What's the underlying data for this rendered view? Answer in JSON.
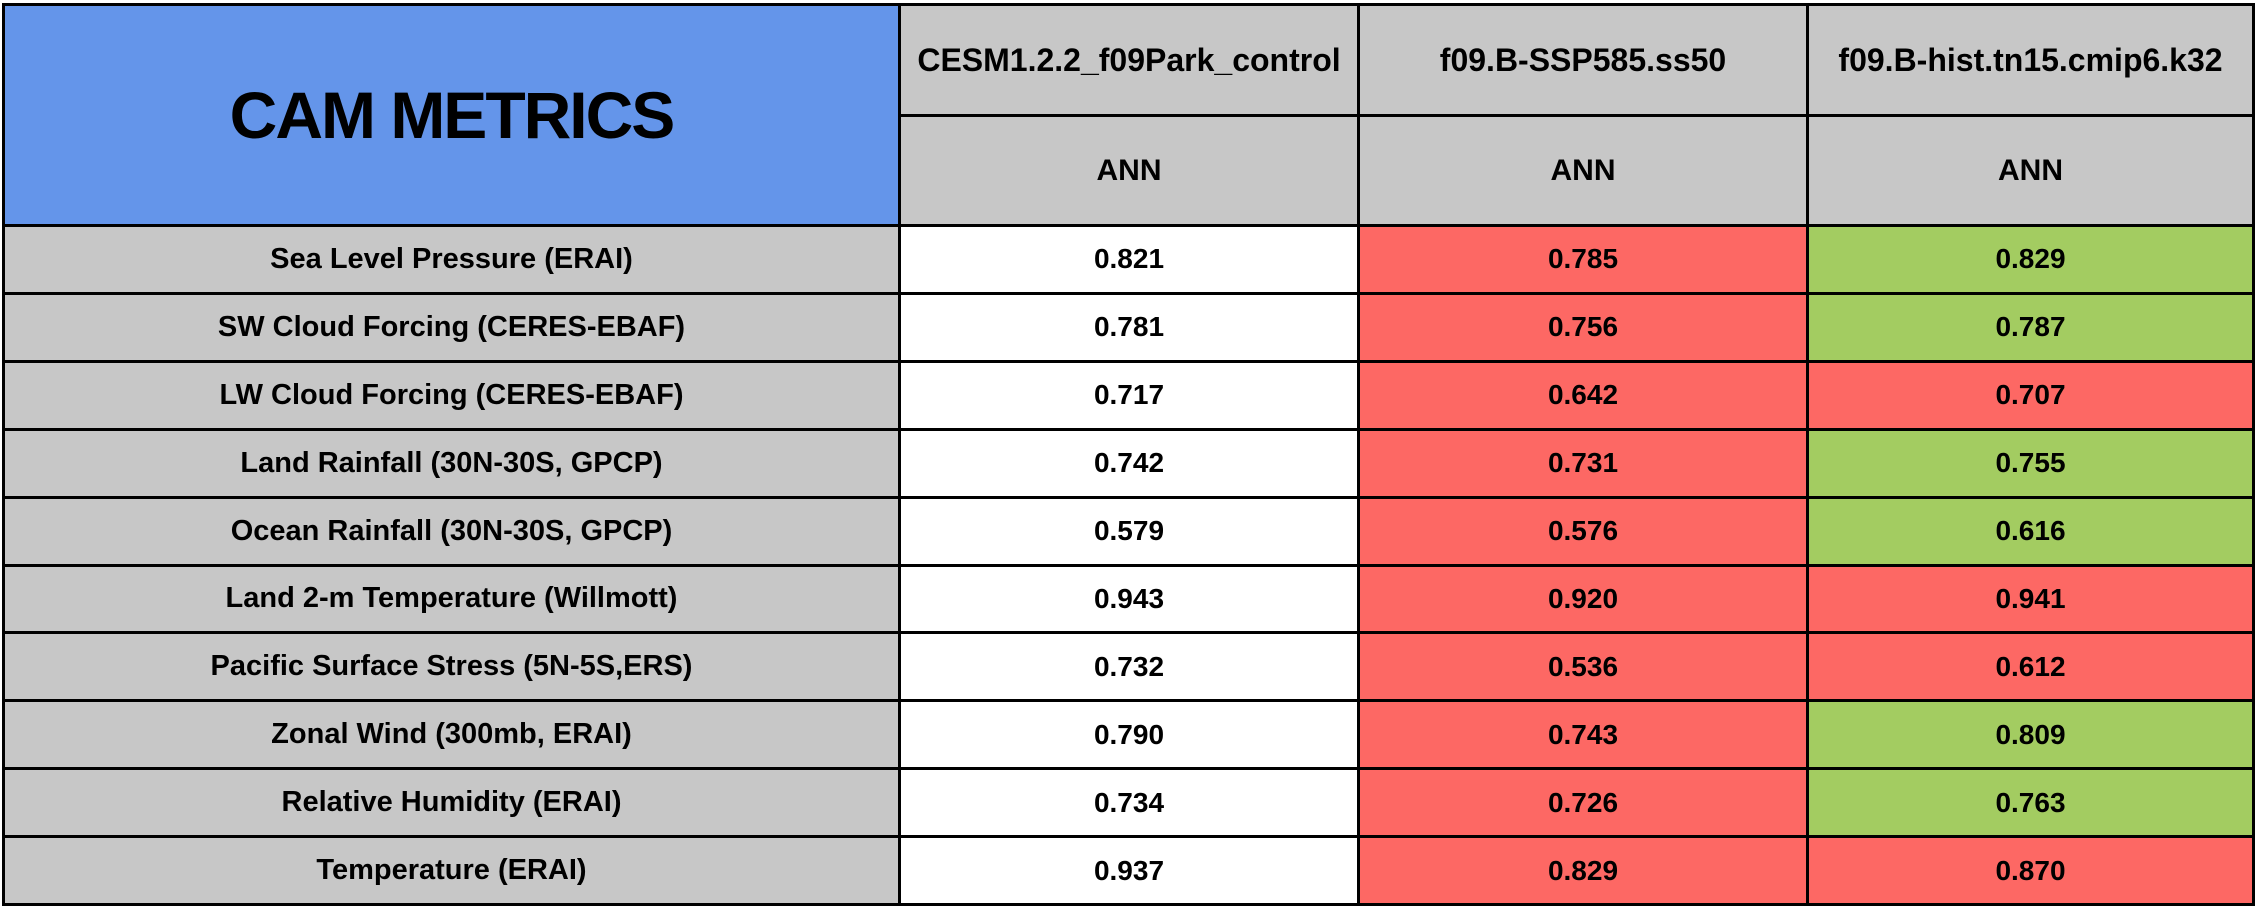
{
  "colors": {
    "blue": "#6495EA",
    "gray": "#C7C7C7",
    "red": "#FD6864",
    "green": "#A3CC61",
    "white": "#FFFFFF",
    "border": "#000000"
  },
  "chart_data": {
    "type": "table",
    "title": "CAM METRICS",
    "legend_note": "cell color encodes comparison vs control: red = worse, green = better, white = control",
    "columns": [
      {
        "model": "CESM1.2.2_f09Park_control",
        "season": "ANN"
      },
      {
        "model": "f09.B-SSP585.ss50",
        "season": "ANN"
      },
      {
        "model": "f09.B-hist.tn15.cmip6.k32",
        "season": "ANN"
      }
    ],
    "rows": [
      {
        "metric": "Sea Level Pressure (ERAI)",
        "values": [
          "0.821",
          "0.785",
          "0.829"
        ],
        "cell_colors": [
          "white",
          "red",
          "green"
        ]
      },
      {
        "metric": "SW Cloud Forcing (CERES-EBAF)",
        "values": [
          "0.781",
          "0.756",
          "0.787"
        ],
        "cell_colors": [
          "white",
          "red",
          "green"
        ]
      },
      {
        "metric": "LW Cloud Forcing (CERES-EBAF)",
        "values": [
          "0.717",
          "0.642",
          "0.707"
        ],
        "cell_colors": [
          "white",
          "red",
          "red"
        ]
      },
      {
        "metric": "Land Rainfall (30N-30S, GPCP)",
        "values": [
          "0.742",
          "0.731",
          "0.755"
        ],
        "cell_colors": [
          "white",
          "red",
          "green"
        ]
      },
      {
        "metric": "Ocean Rainfall (30N-30S, GPCP)",
        "values": [
          "0.579",
          "0.576",
          "0.616"
        ],
        "cell_colors": [
          "white",
          "red",
          "green"
        ]
      },
      {
        "metric": "Land 2-m Temperature (Willmott)",
        "values": [
          "0.943",
          "0.920",
          "0.941"
        ],
        "cell_colors": [
          "white",
          "red",
          "red"
        ]
      },
      {
        "metric": "Pacific Surface Stress (5N-5S,ERS)",
        "values": [
          "0.732",
          "0.536",
          "0.612"
        ],
        "cell_colors": [
          "white",
          "red",
          "red"
        ]
      },
      {
        "metric": "Zonal Wind (300mb, ERAI)",
        "values": [
          "0.790",
          "0.743",
          "0.809"
        ],
        "cell_colors": [
          "white",
          "red",
          "green"
        ]
      },
      {
        "metric": "Relative Humidity (ERAI)",
        "values": [
          "0.734",
          "0.726",
          "0.763"
        ],
        "cell_colors": [
          "white",
          "red",
          "green"
        ]
      },
      {
        "metric": "Temperature (ERAI)",
        "values": [
          "0.937",
          "0.829",
          "0.870"
        ],
        "cell_colors": [
          "white",
          "red",
          "red"
        ]
      }
    ]
  }
}
